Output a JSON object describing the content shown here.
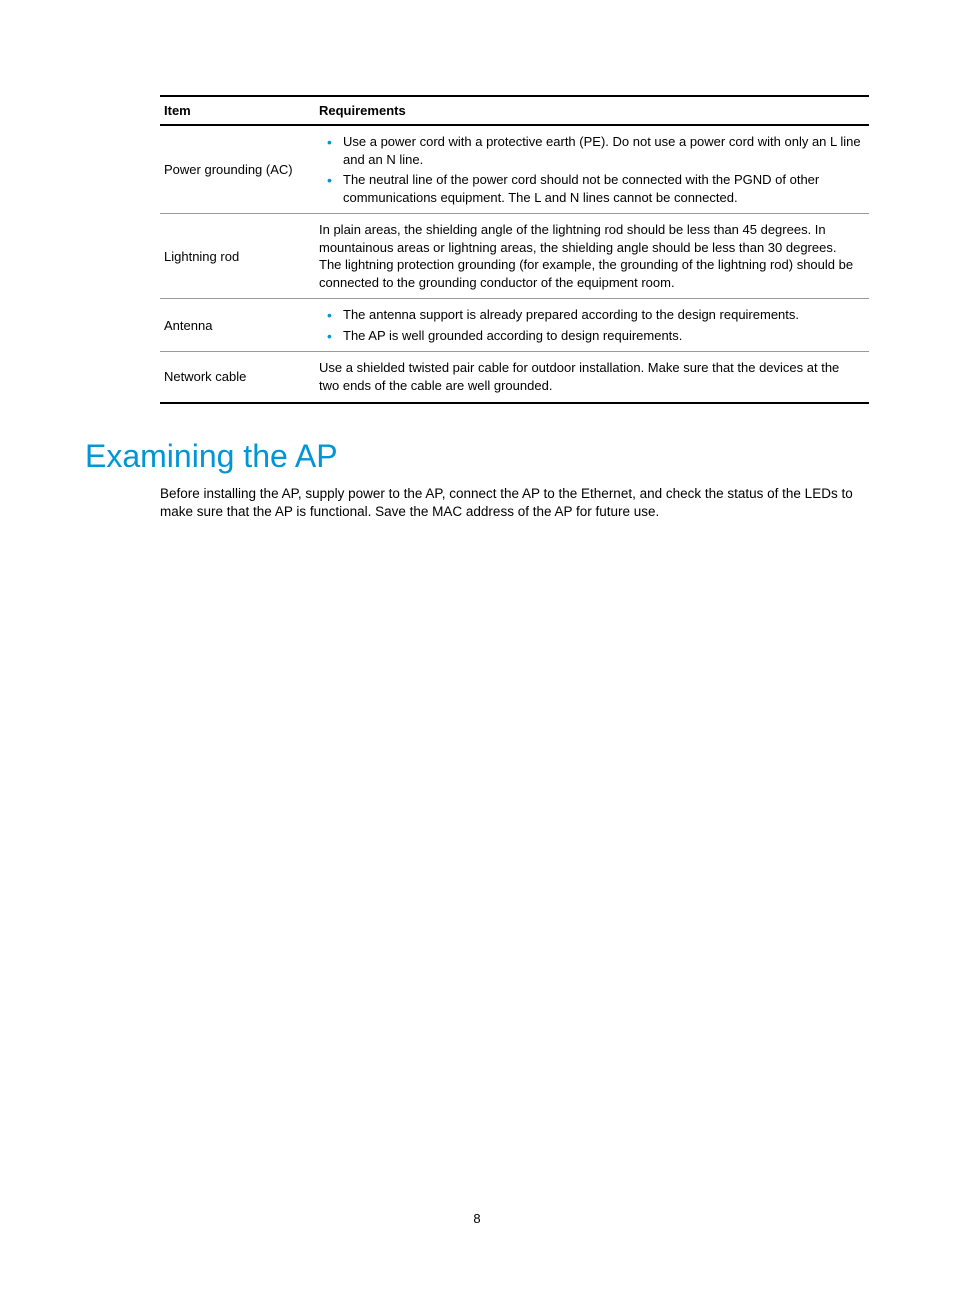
{
  "table": {
    "header": {
      "item": "Item",
      "requirements": "Requirements"
    },
    "rows": [
      {
        "item": "Power grounding (AC)",
        "type": "list",
        "bullets": [
          "Use a power cord with a protective earth (PE). Do not use a power cord with only an L line and an N line.",
          "The neutral line of the power cord should not be connected with the PGND of other communications equipment. The L and N lines cannot be connected."
        ]
      },
      {
        "item": "Lightning rod",
        "type": "text",
        "text": "In plain areas, the shielding angle of the lightning rod should be less than 45 degrees. In mountainous areas or lightning areas, the shielding angle should be less than 30 degrees. The lightning protection grounding (for example, the grounding of the lightning rod) should be connected to the grounding conductor of the equipment room."
      },
      {
        "item": "Antenna",
        "type": "list",
        "bullets": [
          "The antenna support is already prepared according to the design requirements.",
          "The AP is well grounded according to design requirements."
        ]
      },
      {
        "item": "Network cable",
        "type": "text",
        "text": "Use a shielded twisted pair cable for outdoor installation. Make sure that the devices at the two ends of the cable are well grounded."
      }
    ]
  },
  "heading": "Examining the AP",
  "paragraph": "Before installing the AP, supply power to the AP, connect the AP to the Ethernet, and check the status of the LEDs to make sure that the AP is functional. Save the MAC address of the AP for future use.",
  "pageNumber": "8",
  "colors": {
    "accent": "#0096d6",
    "text": "#000000",
    "border_light": "#999999",
    "background": "#ffffff"
  }
}
